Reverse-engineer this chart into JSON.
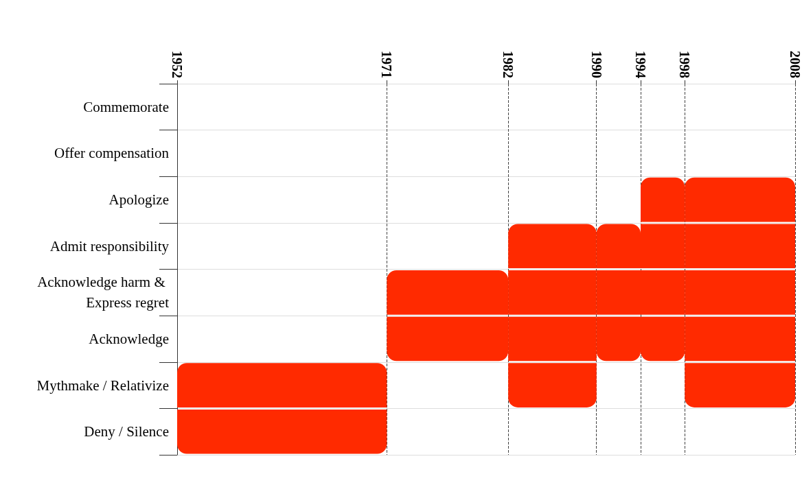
{
  "chart_data": {
    "type": "bar",
    "orientation": "horizontal",
    "categories": [
      "Commemorate",
      "Offer compensation",
      "Apologize",
      "Admit responsibility",
      "Acknowledge harm & Express regret",
      "Acknowledge",
      "Mythmake / Relativize",
      "Deny / Silence"
    ],
    "xlim": [
      1952,
      2008
    ],
    "xticks": [
      1952,
      1971,
      1982,
      1990,
      1994,
      1998,
      2008
    ],
    "grid": true,
    "series": [
      {
        "color": "#ff2a00",
        "base": [
          null,
          null,
          null,
          null,
          null,
          null,
          1952,
          1952
        ],
        "values": [
          null,
          null,
          null,
          null,
          null,
          null,
          19,
          19
        ]
      },
      {
        "color": "#ff2a00",
        "base": [
          null,
          null,
          null,
          null,
          1971,
          1971,
          null,
          null
        ],
        "values": [
          null,
          null,
          null,
          null,
          11,
          11,
          null,
          null
        ]
      },
      {
        "color": "#ff2a00",
        "base": [
          null,
          null,
          null,
          1982,
          1982,
          1982,
          1982,
          null
        ],
        "values": [
          null,
          null,
          null,
          8,
          8,
          8,
          8,
          null
        ]
      },
      {
        "color": "#ff2a00",
        "base": [
          null,
          null,
          null,
          1990,
          1990,
          1990,
          null,
          null
        ],
        "values": [
          null,
          null,
          null,
          4,
          4,
          4,
          null,
          null
        ]
      },
      {
        "color": "#ff2a00",
        "base": [
          null,
          null,
          1994,
          1994,
          1994,
          1994,
          null,
          null
        ],
        "values": [
          null,
          null,
          4,
          4,
          4,
          4,
          null,
          null
        ]
      },
      {
        "color": "#ff2a00",
        "base": [
          null,
          null,
          1998,
          1998,
          1998,
          1998,
          1998,
          null
        ],
        "values": [
          null,
          null,
          10,
          10,
          10,
          10,
          10,
          null
        ]
      }
    ]
  }
}
